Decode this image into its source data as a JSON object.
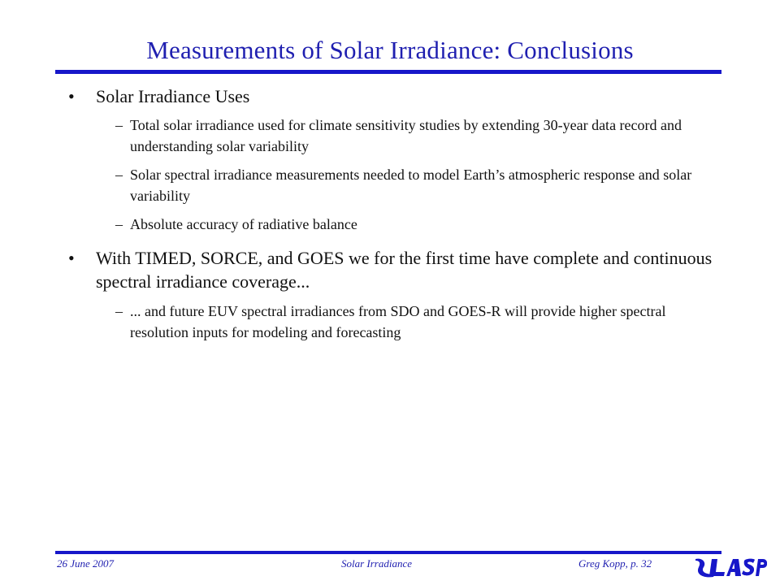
{
  "slide": {
    "title": "Measurements of Solar Irradiance: Conclusions",
    "bullets": [
      {
        "text": "Solar Irradiance Uses",
        "subs": [
          "Total solar irradiance used for climate sensitivity studies by extending 30-year data record and understanding solar variability",
          "Solar spectral irradiance measurements needed to model Earth’s atmospheric response and solar variability",
          "Absolute accuracy of radiative balance"
        ]
      },
      {
        "text": "With TIMED, SORCE, and GOES we for the first time have complete and continuous spectral irradiance coverage...",
        "subs": [
          "... and future EUV spectral irradiances from SDO and GOES-R will provide higher spectral resolution inputs for modeling and forecasting"
        ]
      }
    ],
    "bullet_glyph": "•",
    "dash_glyph": "–"
  },
  "footer": {
    "date": "26 June 2007",
    "topic": "Solar Irradiance",
    "author_page": "Greg Kopp, p. 32",
    "logo_text": "LASP"
  },
  "colors": {
    "accent": "#1717c9",
    "title": "#1f1fb0"
  }
}
